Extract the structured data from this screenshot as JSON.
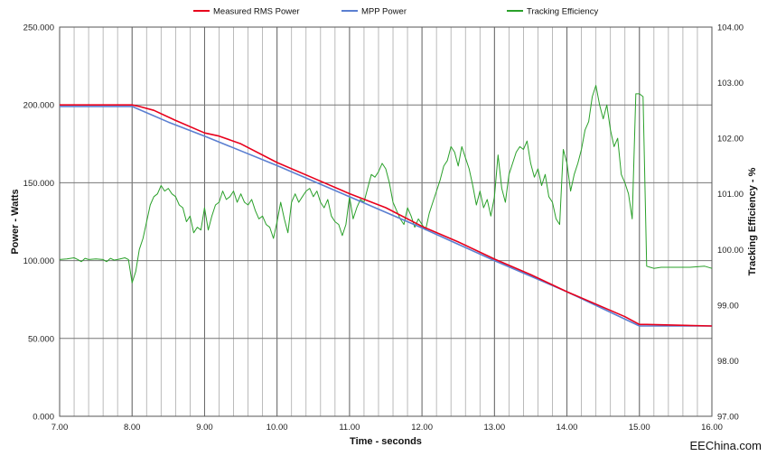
{
  "chart_data": {
    "type": "line",
    "x_axis": {
      "label": "Time - seconds",
      "range": [
        7,
        16
      ],
      "ticks": [
        "7.00",
        "8.00",
        "9.00",
        "10.00",
        "11.00",
        "12.00",
        "13.00",
        "14.00",
        "15.00",
        "16.00"
      ]
    },
    "y_axis_left": {
      "label": "Power - Watts",
      "range": [
        0,
        250
      ],
      "ticks": [
        "0.000",
        "50.000",
        "100.000",
        "150.000",
        "200.000",
        "250.000"
      ]
    },
    "y_axis_right": {
      "label": "Tracking Efficiency - %",
      "range": [
        97,
        104
      ],
      "ticks": [
        "97.00",
        "98.00",
        "99.00",
        "100.00",
        "101.00",
        "102.00",
        "103.00",
        "104.00"
      ]
    },
    "grid": {
      "major_vertical_every": 1,
      "minor_vertical_every": 0.2,
      "horizontal_every": 50
    },
    "legend_position": "top",
    "series": [
      {
        "name": "Measured RMS Power",
        "color": "#e8001c",
        "axis": "left",
        "points": [
          [
            7.0,
            200
          ],
          [
            8.0,
            200
          ],
          [
            8.1,
            199
          ],
          [
            8.3,
            196.5
          ],
          [
            8.6,
            190
          ],
          [
            9.0,
            182
          ],
          [
            9.2,
            180
          ],
          [
            9.5,
            175
          ],
          [
            10.0,
            163
          ],
          [
            10.5,
            153
          ],
          [
            11.0,
            143
          ],
          [
            11.5,
            134
          ],
          [
            12.0,
            122
          ],
          [
            12.5,
            112
          ],
          [
            13.0,
            101
          ],
          [
            13.5,
            91
          ],
          [
            14.0,
            80
          ],
          [
            14.5,
            70
          ],
          [
            14.8,
            64
          ],
          [
            15.0,
            59
          ],
          [
            15.1,
            59
          ],
          [
            16.0,
            58
          ]
        ]
      },
      {
        "name": "MPP Power",
        "color": "#5b7fd1",
        "axis": "left",
        "points": [
          [
            7.0,
            199
          ],
          [
            8.0,
            199
          ],
          [
            8.5,
            189
          ],
          [
            9.0,
            180
          ],
          [
            10.0,
            161
          ],
          [
            11.0,
            141
          ],
          [
            12.0,
            121
          ],
          [
            13.0,
            100
          ],
          [
            14.0,
            80
          ],
          [
            15.0,
            58
          ],
          [
            16.0,
            58
          ]
        ]
      },
      {
        "name": "Tracking Efficiency",
        "color": "#2aa02a",
        "axis": "right",
        "points": [
          [
            7.0,
            99.82
          ],
          [
            7.1,
            99.83
          ],
          [
            7.2,
            99.85
          ],
          [
            7.25,
            99.82
          ],
          [
            7.3,
            99.78
          ],
          [
            7.35,
            99.84
          ],
          [
            7.4,
            99.82
          ],
          [
            7.5,
            99.83
          ],
          [
            7.6,
            99.82
          ],
          [
            7.65,
            99.78
          ],
          [
            7.7,
            99.84
          ],
          [
            7.75,
            99.81
          ],
          [
            7.8,
            99.82
          ],
          [
            7.9,
            99.85
          ],
          [
            7.95,
            99.82
          ],
          [
            8.0,
            99.4
          ],
          [
            8.05,
            99.6
          ],
          [
            8.1,
            100.0
          ],
          [
            8.15,
            100.2
          ],
          [
            8.2,
            100.5
          ],
          [
            8.25,
            100.8
          ],
          [
            8.3,
            100.95
          ],
          [
            8.35,
            101.0
          ],
          [
            8.4,
            101.15
          ],
          [
            8.45,
            101.05
          ],
          [
            8.5,
            101.1
          ],
          [
            8.55,
            101.0
          ],
          [
            8.6,
            100.95
          ],
          [
            8.65,
            100.8
          ],
          [
            8.7,
            100.75
          ],
          [
            8.75,
            100.5
          ],
          [
            8.8,
            100.6
          ],
          [
            8.85,
            100.3
          ],
          [
            8.9,
            100.4
          ],
          [
            8.95,
            100.35
          ],
          [
            9.0,
            100.75
          ],
          [
            9.05,
            100.35
          ],
          [
            9.1,
            100.6
          ],
          [
            9.15,
            100.8
          ],
          [
            9.2,
            100.85
          ],
          [
            9.25,
            101.05
          ],
          [
            9.3,
            100.9
          ],
          [
            9.35,
            100.95
          ],
          [
            9.4,
            101.05
          ],
          [
            9.45,
            100.85
          ],
          [
            9.5,
            101.0
          ],
          [
            9.55,
            100.85
          ],
          [
            9.6,
            100.8
          ],
          [
            9.65,
            100.9
          ],
          [
            9.7,
            100.7
          ],
          [
            9.75,
            100.55
          ],
          [
            9.8,
            100.6
          ],
          [
            9.85,
            100.45
          ],
          [
            9.9,
            100.4
          ],
          [
            9.95,
            100.2
          ],
          [
            10.0,
            100.5
          ],
          [
            10.05,
            100.85
          ],
          [
            10.1,
            100.55
          ],
          [
            10.15,
            100.3
          ],
          [
            10.2,
            100.85
          ],
          [
            10.25,
            101.0
          ],
          [
            10.3,
            100.85
          ],
          [
            10.35,
            100.95
          ],
          [
            10.4,
            101.05
          ],
          [
            10.45,
            101.1
          ],
          [
            10.5,
            100.95
          ],
          [
            10.55,
            101.05
          ],
          [
            10.6,
            100.85
          ],
          [
            10.65,
            100.75
          ],
          [
            10.7,
            100.9
          ],
          [
            10.75,
            100.6
          ],
          [
            10.8,
            100.5
          ],
          [
            10.85,
            100.45
          ],
          [
            10.9,
            100.25
          ],
          [
            10.95,
            100.45
          ],
          [
            11.0,
            100.95
          ],
          [
            11.05,
            100.55
          ],
          [
            11.1,
            100.75
          ],
          [
            11.15,
            100.9
          ],
          [
            11.2,
            100.85
          ],
          [
            11.25,
            101.1
          ],
          [
            11.3,
            101.35
          ],
          [
            11.35,
            101.3
          ],
          [
            11.4,
            101.4
          ],
          [
            11.45,
            101.55
          ],
          [
            11.5,
            101.45
          ],
          [
            11.55,
            101.2
          ],
          [
            11.6,
            100.85
          ],
          [
            11.65,
            100.7
          ],
          [
            11.7,
            100.55
          ],
          [
            11.75,
            100.45
          ],
          [
            11.8,
            100.75
          ],
          [
            11.85,
            100.6
          ],
          [
            11.9,
            100.4
          ],
          [
            11.95,
            100.55
          ],
          [
            12.0,
            100.45
          ],
          [
            12.05,
            100.35
          ],
          [
            12.1,
            100.65
          ],
          [
            12.15,
            100.85
          ],
          [
            12.2,
            101.05
          ],
          [
            12.25,
            101.25
          ],
          [
            12.3,
            101.5
          ],
          [
            12.35,
            101.6
          ],
          [
            12.4,
            101.85
          ],
          [
            12.45,
            101.75
          ],
          [
            12.5,
            101.5
          ],
          [
            12.55,
            101.85
          ],
          [
            12.6,
            101.65
          ],
          [
            12.65,
            101.45
          ],
          [
            12.7,
            101.15
          ],
          [
            12.75,
            100.8
          ],
          [
            12.8,
            101.05
          ],
          [
            12.85,
            100.75
          ],
          [
            12.9,
            100.9
          ],
          [
            12.95,
            100.6
          ],
          [
            13.0,
            100.95
          ],
          [
            13.05,
            101.7
          ],
          [
            13.1,
            101.1
          ],
          [
            13.15,
            100.85
          ],
          [
            13.2,
            101.35
          ],
          [
            13.25,
            101.55
          ],
          [
            13.3,
            101.75
          ],
          [
            13.35,
            101.85
          ],
          [
            13.4,
            101.8
          ],
          [
            13.45,
            101.95
          ],
          [
            13.5,
            101.55
          ],
          [
            13.55,
            101.3
          ],
          [
            13.6,
            101.45
          ],
          [
            13.65,
            101.15
          ],
          [
            13.7,
            101.35
          ],
          [
            13.75,
            100.95
          ],
          [
            13.8,
            100.85
          ],
          [
            13.85,
            100.55
          ],
          [
            13.9,
            100.45
          ],
          [
            13.95,
            101.8
          ],
          [
            14.0,
            101.55
          ],
          [
            14.05,
            101.05
          ],
          [
            14.1,
            101.35
          ],
          [
            14.15,
            101.55
          ],
          [
            14.2,
            101.8
          ],
          [
            14.25,
            102.15
          ],
          [
            14.3,
            102.3
          ],
          [
            14.35,
            102.75
          ],
          [
            14.4,
            102.95
          ],
          [
            14.45,
            102.6
          ],
          [
            14.5,
            102.35
          ],
          [
            14.55,
            102.6
          ],
          [
            14.6,
            102.15
          ],
          [
            14.65,
            101.85
          ],
          [
            14.7,
            102.0
          ],
          [
            14.75,
            101.35
          ],
          [
            14.8,
            101.2
          ],
          [
            14.85,
            101.0
          ],
          [
            14.9,
            100.55
          ],
          [
            14.95,
            102.8
          ],
          [
            15.0,
            102.8
          ],
          [
            15.05,
            102.75
          ],
          [
            15.1,
            99.7
          ],
          [
            15.15,
            99.68
          ],
          [
            15.2,
            99.66
          ],
          [
            15.3,
            99.68
          ],
          [
            15.5,
            99.68
          ],
          [
            15.7,
            99.68
          ],
          [
            15.9,
            99.7
          ],
          [
            16.0,
            99.66
          ]
        ]
      }
    ]
  },
  "watermark": "EEChina.com"
}
